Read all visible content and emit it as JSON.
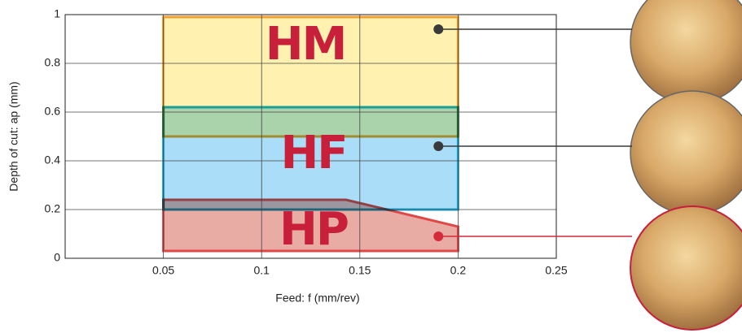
{
  "chart_data": {
    "type": "region",
    "x_label": "Feed: f (mm/rev)",
    "y_label": "Depth of cut: ap (mm)",
    "xlim": [
      0,
      0.25
    ],
    "xticks": [
      0.05,
      0.1,
      0.15,
      0.2,
      0.25
    ],
    "ylim": [
      0,
      1
    ],
    "yticks": [
      0,
      0.2,
      0.4,
      0.6,
      0.8,
      1
    ],
    "grid": true,
    "series": [
      {
        "name": "HM",
        "color": "#fff2b0",
        "edge": "#f0a030",
        "x": [
          0.05,
          0.2,
          0.2,
          0.05
        ],
        "y": [
          0.5,
          0.5,
          0.99,
          0.99
        ],
        "marker": {
          "x": 0.19,
          "y": 0.94,
          "color": "#3a3a3a"
        }
      },
      {
        "name": "HF",
        "color": "#aadef8",
        "edge": "#19a8d8",
        "x": [
          0.05,
          0.2,
          0.2,
          0.05
        ],
        "y": [
          0.2,
          0.2,
          0.62,
          0.62
        ],
        "marker": {
          "x": 0.19,
          "y": 0.46,
          "color": "#3a3a3a"
        }
      },
      {
        "name": "HP",
        "color": "#e8aca4",
        "edge": "#e04848",
        "x": [
          0.05,
          0.2,
          0.2,
          0.143,
          0.05
        ],
        "y": [
          0.03,
          0.03,
          0.13,
          0.24,
          0.24
        ],
        "marker": {
          "x": 0.19,
          "y": 0.09,
          "color": "#d42a3a"
        }
      }
    ]
  }
}
